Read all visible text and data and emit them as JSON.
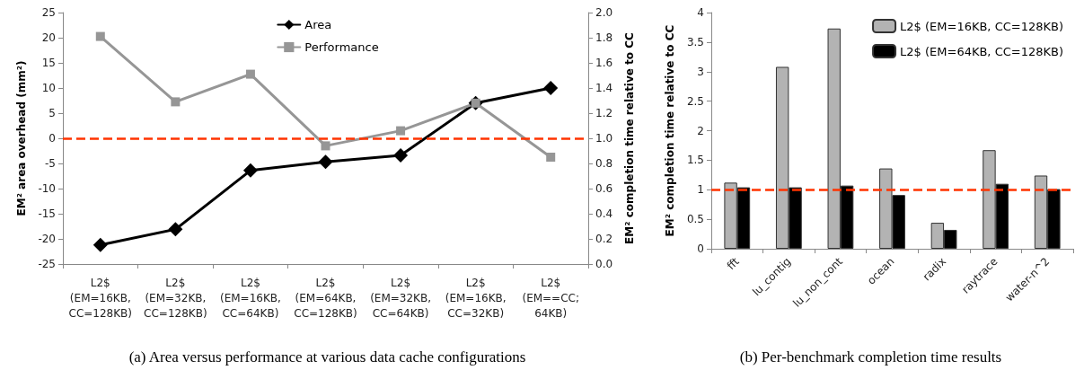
{
  "chart_data": [
    {
      "type": "line",
      "categories": [
        "L2$\n(EM=16KB,\nCC=128KB)",
        "L2$\n(EM=32KB,\nCC=128KB)",
        "L2$\n(EM=16KB,\nCC=64KB)",
        "L2$\n(EM=64KB,\nCC=128KB)",
        "L2$\n(EM=32KB,\nCC=64KB)",
        "L2$\n(EM=16KB,\nCC=32KB)",
        "L2$\n(EM==CC;\n64KB)"
      ],
      "series": [
        {
          "name": "Area",
          "color": "#000000",
          "marker": "diamond",
          "values": [
            -21.2,
            -18.1,
            -6.4,
            -4.7,
            -3.4,
            7,
            10
          ]
        },
        {
          "name": "Performance",
          "color": "#969696",
          "marker": "square",
          "axis": "y2",
          "values": [
            1.81,
            1.29,
            1.51,
            0.94,
            1.06,
            1.28,
            0.85
          ]
        }
      ],
      "ylabel": "EM² area overhead (mm²)",
      "y2label": "EM² completion time relative to CC",
      "ylim": [
        -25,
        25
      ],
      "yticks": [
        -25,
        -20,
        -15,
        -10,
        -5,
        0,
        5,
        10,
        15,
        20,
        25
      ],
      "y2lim": [
        0,
        2
      ],
      "y2ticks": [
        {
          "value": 0,
          "label": "0.0"
        },
        {
          "value": 0.2,
          "label": "0.2"
        },
        {
          "value": 0.4,
          "label": "0.4"
        },
        {
          "value": 0.6,
          "label": "0.6"
        },
        {
          "value": 0.8,
          "label": "0.8"
        },
        {
          "value": 1,
          "label": "1.0"
        },
        {
          "value": 1.2,
          "label": "1.2"
        },
        {
          "value": 1.4,
          "label": "1.4"
        },
        {
          "value": 1.6,
          "label": "1.6"
        },
        {
          "value": 1.8,
          "label": "1.8"
        },
        {
          "value": 2,
          "label": "2.0"
        }
      ],
      "ref_lines": [
        {
          "axis": "y",
          "value": 0,
          "color": "#ff3300",
          "line_style": "dashed"
        }
      ],
      "legend": "top",
      "grid": false,
      "annotations": [
        "(a) Area versus performance at various data cache configurations"
      ]
    },
    {
      "type": "bar",
      "categories": [
        "fft",
        "lu_contig",
        "lu_non_cont",
        "ocean",
        "radix",
        "raytrace",
        "water-n^2"
      ],
      "series": [
        {
          "name": "L2$ (EM=16KB, CC=128KB)",
          "color": "#b3b3b3",
          "values": [
            1.12,
            3.08,
            3.73,
            1.36,
            0.44,
            1.67,
            1.24
          ]
        },
        {
          "name": "L2$ (EM=64KB, CC=128KB)",
          "color": "#000000",
          "values": [
            1.04,
            1.04,
            1.07,
            0.91,
            0.32,
            1.1,
            1.01
          ]
        }
      ],
      "ylabel": "EM² completion time relative to CC",
      "ylim": [
        0,
        4
      ],
      "yticks": [
        0,
        0.5,
        1,
        1.5,
        2,
        2.5,
        3,
        3.5,
        4
      ],
      "ref_lines": [
        {
          "axis": "y",
          "value": 1,
          "color": "#ff3300",
          "line_style": "dashed"
        }
      ],
      "legend": "top right",
      "grid": false,
      "annotations": [
        "(b) Per-benchmark completion time results"
      ]
    }
  ]
}
